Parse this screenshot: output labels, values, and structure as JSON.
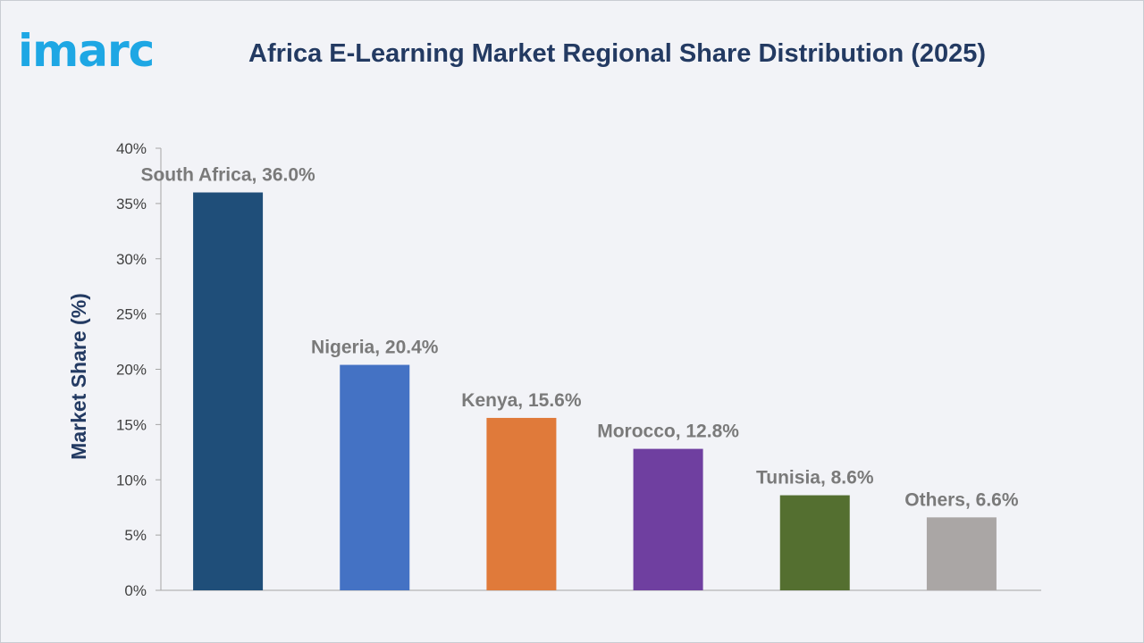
{
  "logo_text": "imarc",
  "colors": {
    "logo": "#1ea7e4",
    "title": "#233a62",
    "axis_title": "#233a62",
    "data_label": "#7a7a7a"
  },
  "chart_data": {
    "type": "bar",
    "title": "Africa E-Learning Market Regional Share Distribution (2025)",
    "xlabel": "",
    "ylabel": "Market Share (%)",
    "unit": "%",
    "ylim": [
      0,
      40
    ],
    "yticks": [
      0,
      5,
      10,
      15,
      20,
      25,
      30,
      35,
      40
    ],
    "ytick_labels": [
      "0%",
      "5%",
      "10%",
      "15%",
      "20%",
      "25%",
      "30%",
      "35%",
      "40%"
    ],
    "categories": [
      "South Africa",
      "Nigeria",
      "Kenya",
      "Morocco",
      "Tunisia",
      "Others"
    ],
    "values": [
      36.0,
      20.4,
      15.6,
      12.8,
      8.6,
      6.6
    ],
    "data_labels": [
      "South Africa, 36.0%",
      "Nigeria, 20.4%",
      "Kenya, 15.6%",
      "Morocco, 12.8%",
      "Tunisia, 8.6%",
      "Others, 6.6%"
    ],
    "bar_colors": [
      "#1f4e79",
      "#4472c4",
      "#e07a3a",
      "#6f3fa0",
      "#546f30",
      "#aaa6a5"
    ],
    "grid": false,
    "legend": "none"
  }
}
